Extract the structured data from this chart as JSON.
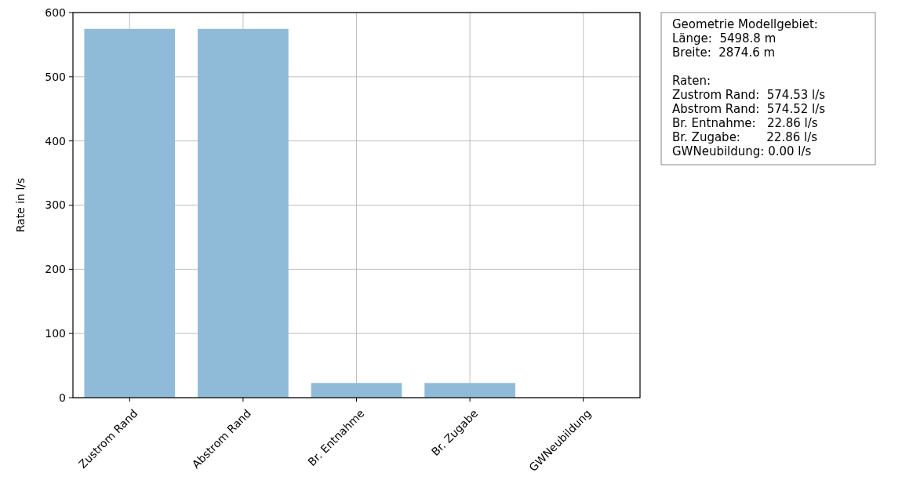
{
  "chart_data": {
    "type": "bar",
    "ylabel": "Rate in l/s",
    "categories": [
      "Zustrom Rand",
      "Abstrom Rand",
      "Br. Entnahme",
      "Br. Zugabe",
      "GWNeubildung"
    ],
    "values": [
      574.53,
      574.52,
      22.86,
      22.86,
      0.0
    ],
    "color": "#8fbbd9",
    "ylim": [
      0,
      600
    ],
    "yticks": [
      0,
      100,
      200,
      300,
      400,
      500,
      600
    ],
    "grid": true,
    "annotations": [
      "Geometrie Modellgebiet:\nLänge:  5498.8 m\nBreite:  2874.6 m",
      "Raten:\nZustrom Rand:  574.53 l/s\nAbstrom Rand:  574.52 l/s\nBr. Entnahme:   22.86 l/s\nBr. Zugabe:       22.86 l/s\nGWNeubildung: 0.00 l/s"
    ]
  }
}
